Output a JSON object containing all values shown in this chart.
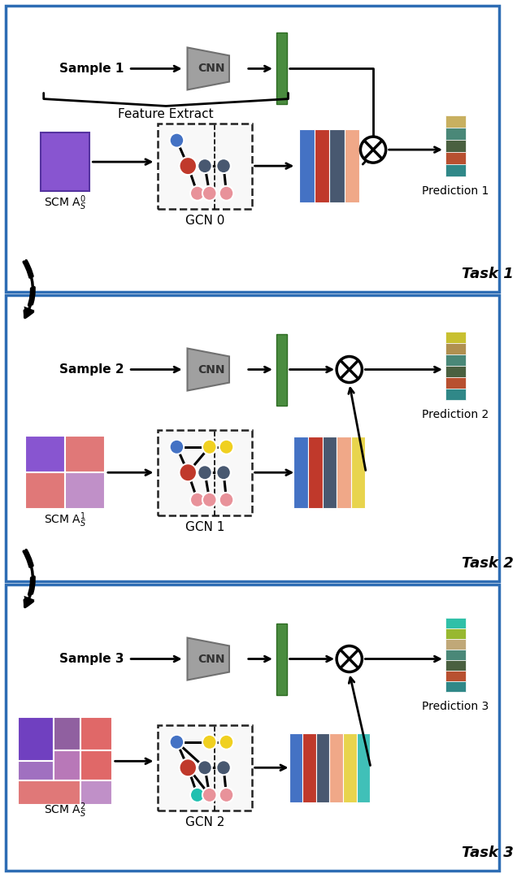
{
  "panel_border_color": "#2e6db4",
  "panel_bg": "#ffffff",
  "task_labels": [
    "Task 1",
    "Task 2",
    "Task 3"
  ],
  "sample_labels": [
    "Sample 1",
    "Sample 2",
    "Sample 3"
  ],
  "gcn_labels": [
    "GCN 0",
    "GCN 1",
    "GCN 2"
  ],
  "feature_extract_label": "Feature Extract",
  "prediction_labels": [
    "Prediction 1",
    "Prediction 2",
    "Prediction 3"
  ],
  "scm_labels": [
    "SCM A$_S^0$",
    "SCM A$_S^1$",
    "SCM A$_S^2$"
  ],
  "cnn_color": "#a0a0a0",
  "cnn_edge_color": "#707070",
  "green_bar_color": "#4a8c3f",
  "green_bar_edge": "#2d6b22",
  "node_blue": "#4472c4",
  "node_red": "#c0392b",
  "node_dark": "#485870",
  "node_pink": "#e8929a",
  "node_yellow": "#f0d020",
  "node_cyan": "#20c0b0",
  "gcn_bar_colors_task1": [
    "#4472c4",
    "#c0392b",
    "#485870",
    "#f0a888"
  ],
  "gcn_bar_colors_task2": [
    "#4472c4",
    "#c0392b",
    "#485870",
    "#f0a888",
    "#e8d44d"
  ],
  "gcn_bar_colors_task3": [
    "#4472c4",
    "#c0392b",
    "#485870",
    "#f0a888",
    "#e8d44d",
    "#40c0b8"
  ],
  "pred1_colors": [
    "#c8b060",
    "#4a8878",
    "#4a6040",
    "#b85030",
    "#308888"
  ],
  "pred2_colors": [
    "#c8c030",
    "#b09050",
    "#4a8878",
    "#4a6040",
    "#b85030",
    "#308888"
  ],
  "pred3_colors": [
    "#30c0a8",
    "#98b830",
    "#c0a878",
    "#4a8878",
    "#4a6040",
    "#b85030",
    "#308888"
  ],
  "scm1_color": "#8855d0",
  "scm2_colors": [
    [
      "#8855d0",
      "#e07878"
    ],
    [
      "#e07878",
      "#c090c8"
    ]
  ],
  "scm3_layout": [
    [
      [
        "#7040c0",
        2
      ],
      [
        "#9060a0",
        1
      ],
      [
        "#e06868",
        1
      ]
    ],
    [
      [
        "#a070c0",
        1
      ],
      [
        "#b078b8",
        1
      ],
      [
        "#e06868",
        1
      ]
    ],
    [
      [
        "#e07878",
        2
      ],
      [
        "#c090c8",
        1
      ]
    ]
  ]
}
